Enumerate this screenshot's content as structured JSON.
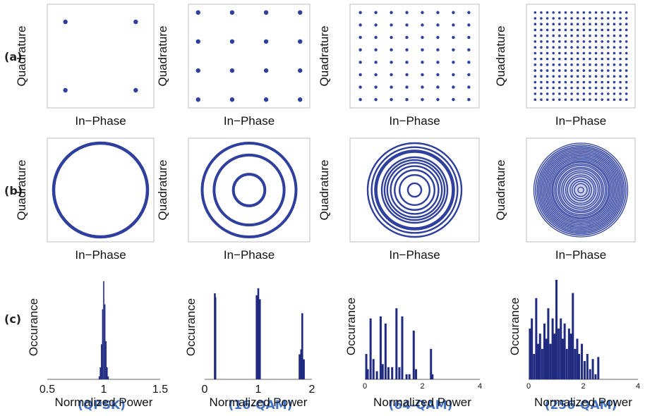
{
  "row_labels": [
    "(a)",
    "(b)",
    "(c)"
  ],
  "column_labels": [
    "(QPSK)",
    "(16-QAM)",
    "(64-QAM)",
    "(256-QAM)"
  ],
  "colors": {
    "marks": "#2e3f9e",
    "bars": "#1f2a80",
    "row_label": "#222222",
    "column_label": "#4472c4"
  },
  "chart_data": [
    {
      "type": "scatter",
      "row": "(a)",
      "column": "(QPSK)",
      "xlabel": "In−Phase",
      "ylabel": "Quadrature",
      "grid": false,
      "m": 2
    },
    {
      "type": "scatter",
      "row": "(a)",
      "column": "(16-QAM)",
      "xlabel": "In−Phase",
      "ylabel": "Quadrature",
      "grid": false,
      "m": 4
    },
    {
      "type": "scatter",
      "row": "(a)",
      "column": "(64-QAM)",
      "xlabel": "In−Phase",
      "ylabel": "Quadrature",
      "grid": false,
      "m": 8
    },
    {
      "type": "scatter",
      "row": "(a)",
      "column": "(256-QAM)",
      "xlabel": "In−Phase",
      "ylabel": "Quadrature",
      "grid": false,
      "m": 16
    },
    {
      "type": "scatter",
      "row": "(b)",
      "column": "(QPSK)",
      "xlabel": "In−Phase",
      "ylabel": "Quadrature",
      "grid": false,
      "ring_radii": [
        1.0
      ]
    },
    {
      "type": "scatter",
      "row": "(b)",
      "column": "(16-QAM)",
      "xlabel": "In−Phase",
      "ylabel": "Quadrature",
      "grid": false,
      "ring_radii": [
        0.45,
        1.0,
        1.34
      ]
    },
    {
      "type": "scatter",
      "row": "(b)",
      "column": "(64-QAM)",
      "xlabel": "In−Phase",
      "ylabel": "Quadrature",
      "grid": false,
      "ring_radii": [
        0.22,
        0.49,
        0.65,
        0.78,
        0.89,
        0.98,
        1.07,
        1.24,
        1.29,
        1.4,
        1.53
      ]
    },
    {
      "type": "scatter",
      "row": "(b)",
      "column": "(256-QAM)",
      "xlabel": "In−Phase",
      "ylabel": "Quadrature",
      "grid": false,
      "ring_radii": [
        0.1,
        0.22,
        0.3,
        0.37,
        0.46,
        0.52,
        0.6,
        0.66,
        0.73,
        0.78,
        0.85,
        0.9,
        0.96,
        1.0,
        1.05,
        1.1,
        1.15,
        1.2,
        1.25,
        1.3,
        1.35,
        1.4,
        1.45,
        1.5,
        1.56,
        1.62
      ]
    },
    {
      "type": "bar",
      "row": "(c)",
      "column": "(QPSK)",
      "xlabel": "Normalized Power",
      "ylabel": "Occurance",
      "xlim": [
        0.5,
        1.5
      ],
      "xticks": [
        "0.5",
        "1",
        "1.5"
      ],
      "grid": false,
      "bars": [
        {
          "x": 0.96,
          "h": 0.03
        },
        {
          "x": 0.97,
          "h": 0.12
        },
        {
          "x": 0.98,
          "h": 0.35
        },
        {
          "x": 0.99,
          "h": 0.7
        },
        {
          "x": 1.0,
          "h": 0.98
        },
        {
          "x": 1.01,
          "h": 0.75
        },
        {
          "x": 1.02,
          "h": 0.38
        },
        {
          "x": 1.03,
          "h": 0.12
        },
        {
          "x": 1.04,
          "h": 0.03
        }
      ]
    },
    {
      "type": "bar",
      "row": "(c)",
      "column": "(16-QAM)",
      "xlabel": "Normalized Power",
      "ylabel": "Occurance",
      "xlim": [
        0,
        2
      ],
      "xticks": [
        "0",
        "1",
        "2"
      ],
      "grid": false,
      "bars": [
        {
          "x": 0.19,
          "h": 0.86
        },
        {
          "x": 0.2,
          "h": 0.82
        },
        {
          "x": 0.97,
          "h": 0.84
        },
        {
          "x": 1.0,
          "h": 0.91
        },
        {
          "x": 1.03,
          "h": 0.8
        },
        {
          "x": 1.77,
          "h": 0.25
        },
        {
          "x": 1.8,
          "h": 0.3
        },
        {
          "x": 1.82,
          "h": 0.66
        },
        {
          "x": 1.85,
          "h": 0.2
        }
      ]
    },
    {
      "type": "bar",
      "row": "(c)",
      "column": "(64-QAM)",
      "xlabel": "Normalized Power",
      "ylabel": "Occurance",
      "xlim": [
        0,
        4
      ],
      "xticks": [
        "0",
        "2",
        "4"
      ],
      "grid": false,
      "bars": [
        {
          "x": 0.05,
          "h": 0.25
        },
        {
          "x": 0.1,
          "h": 0.1
        },
        {
          "x": 0.2,
          "h": 0.6
        },
        {
          "x": 0.3,
          "h": 0.2
        },
        {
          "x": 0.42,
          "h": 0.08
        },
        {
          "x": 0.55,
          "h": 0.62
        },
        {
          "x": 0.62,
          "h": 0.15
        },
        {
          "x": 0.72,
          "h": 0.55
        },
        {
          "x": 0.82,
          "h": 0.12
        },
        {
          "x": 0.95,
          "h": 0.12
        },
        {
          "x": 1.1,
          "h": 0.7
        },
        {
          "x": 1.2,
          "h": 0.12
        },
        {
          "x": 1.3,
          "h": 0.62
        },
        {
          "x": 1.45,
          "h": 0.05
        },
        {
          "x": 1.55,
          "h": 0.05
        },
        {
          "x": 1.7,
          "h": 0.48
        },
        {
          "x": 1.78,
          "h": 0.1
        },
        {
          "x": 2.3,
          "h": 0.3
        },
        {
          "x": 2.35,
          "h": 0.05
        }
      ]
    },
    {
      "type": "bar",
      "row": "(c)",
      "column": "(256-QAM)",
      "xlabel": "Normalized Power",
      "ylabel": "Occurance",
      "xlim": [
        0,
        4
      ],
      "xticks": [
        "0",
        "2",
        "4"
      ],
      "grid": false,
      "bars": [
        {
          "x": 0.05,
          "h": 0.5
        },
        {
          "x": 0.12,
          "h": 0.6
        },
        {
          "x": 0.2,
          "h": 0.25
        },
        {
          "x": 0.28,
          "h": 0.8
        },
        {
          "x": 0.35,
          "h": 0.35
        },
        {
          "x": 0.42,
          "h": 0.45
        },
        {
          "x": 0.5,
          "h": 0.3
        },
        {
          "x": 0.58,
          "h": 0.55
        },
        {
          "x": 0.65,
          "h": 0.4
        },
        {
          "x": 0.72,
          "h": 0.7
        },
        {
          "x": 0.8,
          "h": 0.35
        },
        {
          "x": 0.88,
          "h": 0.6
        },
        {
          "x": 0.95,
          "h": 0.45
        },
        {
          "x": 1.02,
          "h": 0.98
        },
        {
          "x": 1.1,
          "h": 0.5
        },
        {
          "x": 1.18,
          "h": 0.6
        },
        {
          "x": 1.25,
          "h": 0.4
        },
        {
          "x": 1.32,
          "h": 0.55
        },
        {
          "x": 1.4,
          "h": 0.3
        },
        {
          "x": 1.48,
          "h": 0.5
        },
        {
          "x": 1.55,
          "h": 0.45
        },
        {
          "x": 1.62,
          "h": 0.85
        },
        {
          "x": 1.7,
          "h": 0.3
        },
        {
          "x": 1.78,
          "h": 0.4
        },
        {
          "x": 1.85,
          "h": 0.25
        },
        {
          "x": 1.95,
          "h": 0.35
        },
        {
          "x": 2.05,
          "h": 0.18
        },
        {
          "x": 2.15,
          "h": 0.25
        },
        {
          "x": 2.25,
          "h": 0.1
        },
        {
          "x": 2.35,
          "h": 0.2
        },
        {
          "x": 2.45,
          "h": 0.05
        },
        {
          "x": 2.55,
          "h": 0.22
        }
      ]
    }
  ]
}
